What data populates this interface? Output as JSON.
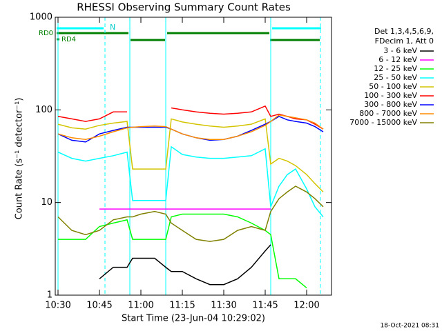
{
  "chart_data": {
    "type": "line",
    "title": "RHESSI Observing Summary Count Rates",
    "x_label": "Start Time (23-Jun-04 10:29:02)",
    "y_label": "Count Rate (s⁻¹ detector⁻¹)",
    "legend_header": [
      "Det 1,3,4,5,6,9,",
      "FDecim 1, Att 0"
    ],
    "footer": "18-Oct-2021 08:31",
    "annotations": [
      "N",
      "RD0",
      "RD4"
    ],
    "log_y": true,
    "xlim": [
      "10:29",
      "12:09"
    ],
    "xticks": [
      "10:30",
      "10:45",
      "11:00",
      "11:15",
      "11:30",
      "11:45",
      "12:00"
    ],
    "ylim": [
      1,
      1000
    ],
    "yticks": [
      1,
      10,
      100,
      1000
    ],
    "vlines": [
      {
        "x": "10:30",
        "style": "solid"
      },
      {
        "x": "10:47",
        "style": "dashed"
      },
      {
        "x": "10:56",
        "style": "solid"
      },
      {
        "x": "11:09",
        "style": "solid"
      },
      {
        "x": "11:47",
        "style": "solid"
      },
      {
        "x": "12:05",
        "style": "dashed"
      }
    ],
    "x": [
      "10:30",
      "10:35",
      "10:40",
      "10:45",
      "10:50",
      "10:55",
      "10:57",
      "11:00",
      "11:05",
      "11:09",
      "11:11",
      "11:15",
      "11:20",
      "11:25",
      "11:30",
      "11:35",
      "11:40",
      "11:45",
      "11:47",
      "11:50",
      "11:53",
      "11:56",
      "12:00",
      "12:03",
      "12:06"
    ],
    "series": [
      {
        "name": "3 - 6 keV",
        "color": "#000000",
        "values": [
          null,
          null,
          null,
          1.5,
          2,
          2,
          2.5,
          2.5,
          2.5,
          2,
          1.8,
          1.8,
          1.5,
          1.3,
          1.3,
          1.5,
          2,
          3,
          3.5,
          null,
          null,
          null,
          null,
          null,
          null
        ]
      },
      {
        "name": "6 - 12 keV",
        "color": "#ff00ff",
        "values": [
          null,
          null,
          null,
          8.5,
          8.5,
          8.5,
          8.5,
          8.5,
          8.5,
          8.5,
          8.5,
          8.5,
          8.5,
          8.5,
          8.5,
          8.5,
          8.5,
          8.5,
          8.5,
          null,
          null,
          null,
          null,
          null,
          null
        ]
      },
      {
        "name": "12 - 25 keV",
        "color": "#00ff00",
        "values": [
          4,
          4,
          4,
          5.5,
          6,
          6.5,
          4,
          4,
          4,
          4,
          7,
          7.5,
          7.5,
          7.5,
          7.5,
          7,
          6,
          5,
          4.5,
          1.5,
          1.5,
          1.5,
          1.2,
          null,
          null
        ]
      },
      {
        "name": "25 - 50 keV",
        "color": "#00ffff",
        "values": [
          35,
          30,
          28,
          30,
          32,
          35,
          10.5,
          10.5,
          10.5,
          10.5,
          40,
          33,
          31,
          30,
          30,
          31,
          32,
          38,
          9,
          15,
          20,
          23,
          14,
          9,
          7
        ]
      },
      {
        "name": "50 - 100 keV",
        "color": "#d4c400",
        "values": [
          70,
          64,
          62,
          68,
          72,
          75,
          23,
          23,
          23,
          23,
          80,
          74,
          70,
          67,
          65,
          67,
          70,
          80,
          26,
          30,
          28,
          25,
          20,
          16,
          13
        ]
      },
      {
        "name": "100 - 300 keV",
        "color": "#ff0000",
        "values": [
          85,
          80,
          75,
          80,
          95,
          95,
          null,
          null,
          null,
          null,
          105,
          100,
          95,
          92,
          90,
          92,
          95,
          110,
          85,
          90,
          85,
          80,
          78,
          70,
          62
        ]
      },
      {
        "name": "300 - 800 keV",
        "color": "#0000ff",
        "values": [
          55,
          47,
          45,
          55,
          60,
          65,
          65,
          65,
          65,
          65,
          62,
          55,
          50,
          47,
          48,
          52,
          60,
          70,
          75,
          85,
          78,
          75,
          72,
          66,
          58
        ]
      },
      {
        "name": "800 - 7000 keV",
        "color": "#ff8c00",
        "values": [
          55,
          50,
          48,
          52,
          58,
          64,
          65,
          66,
          67,
          66,
          62,
          55,
          50,
          48,
          48,
          52,
          58,
          68,
          75,
          88,
          85,
          82,
          78,
          72,
          62
        ]
      },
      {
        "name": "7000 - 15000 keV",
        "color": "#808000",
        "values": [
          7,
          5,
          4.5,
          5,
          6.5,
          7,
          7,
          7.5,
          8,
          7.5,
          6,
          5,
          4,
          3.8,
          4,
          5,
          5.5,
          5,
          8,
          11,
          13,
          15,
          13,
          11,
          9
        ]
      }
    ]
  }
}
